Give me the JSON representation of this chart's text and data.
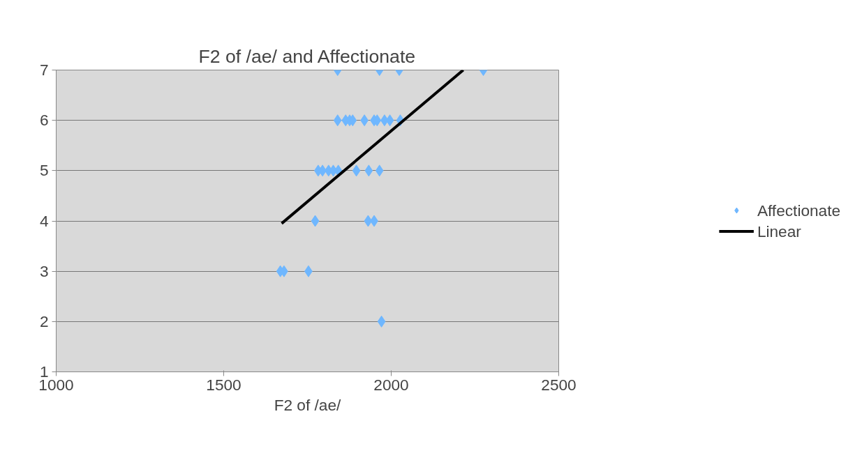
{
  "chart_data": {
    "type": "scatter",
    "title": "F2 of /ae/ and Affectionate",
    "xlabel": "F2 of /ae/",
    "xlim": [
      1000,
      2500
    ],
    "xticks": [
      1000,
      1500,
      2000,
      2500
    ],
    "ylim": [
      1,
      7
    ],
    "yticks": [
      1,
      2,
      3,
      4,
      5,
      6,
      7
    ],
    "grid": "y",
    "legend": "right",
    "series": [
      {
        "name": "Affectionate",
        "marker": "diamond",
        "color": "#6fb7ff",
        "x": [
          1840,
          1965,
          2024,
          2275,
          1840,
          1864,
          1876,
          1885,
          1920,
          1949,
          1958,
          1980,
          1996,
          2027,
          1782,
          1795,
          1813,
          1827,
          1842,
          1896,
          1933,
          1965,
          1773,
          1931,
          1949,
          1669,
          1680,
          1753,
          1971
        ],
        "values": [
          7,
          7,
          7,
          7,
          6,
          6,
          6,
          6,
          6,
          6,
          6,
          6,
          6,
          6,
          5,
          5,
          5,
          5,
          5,
          5,
          5,
          5,
          4,
          4,
          4,
          3,
          3,
          3,
          2
        ]
      },
      {
        "name": "Linear",
        "type": "line",
        "color": "#000000",
        "x": [
          1673,
          2215
        ],
        "values": [
          3.95,
          7
        ]
      }
    ]
  }
}
